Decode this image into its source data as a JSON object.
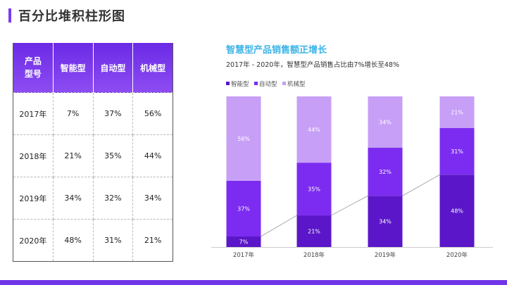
{
  "page": {
    "title": "百分比堆积柱形图"
  },
  "table": {
    "header_top": "产品",
    "header_bottom": "型号",
    "columns": [
      "智能型",
      "自动型",
      "机械型"
    ],
    "rows": [
      {
        "year": "2017年",
        "values": [
          "7%",
          "37%",
          "56%"
        ]
      },
      {
        "year": "2018年",
        "values": [
          "21%",
          "35%",
          "44%"
        ]
      },
      {
        "year": "2019年",
        "values": [
          "34%",
          "32%",
          "34%"
        ]
      },
      {
        "year": "2020年",
        "values": [
          "48%",
          "31%",
          "21%"
        ]
      }
    ]
  },
  "chart_data": {
    "type": "bar",
    "stacked": "percent",
    "title": "智慧型产品销售额正增长",
    "subtitle": "2017年 - 2020年，智慧型产品销售占比由7%增长至48%",
    "categories": [
      "2017年",
      "2018年",
      "2019年",
      "2020年"
    ],
    "series": [
      {
        "name": "智能型",
        "values": [
          7,
          21,
          34,
          48
        ],
        "labels": [
          "7%",
          "21%",
          "34%",
          "48%"
        ],
        "color": "#5a16c8"
      },
      {
        "name": "自动型",
        "values": [
          37,
          35,
          32,
          31
        ],
        "labels": [
          "37%",
          "35%",
          "32%",
          "31%"
        ],
        "color": "#7c2cf0"
      },
      {
        "name": "机械型",
        "values": [
          56,
          44,
          34,
          21
        ],
        "labels": [
          "56%",
          "44%",
          "34%",
          "21%"
        ],
        "color": "#c79ff6"
      }
    ],
    "ylim": [
      0,
      100
    ],
    "legend": "top-left",
    "connector_lines": true
  },
  "colors": {
    "accent": "#7a3cf0",
    "title_blue": "#3cb4e6",
    "bottom_bar": "#6f35e6"
  }
}
